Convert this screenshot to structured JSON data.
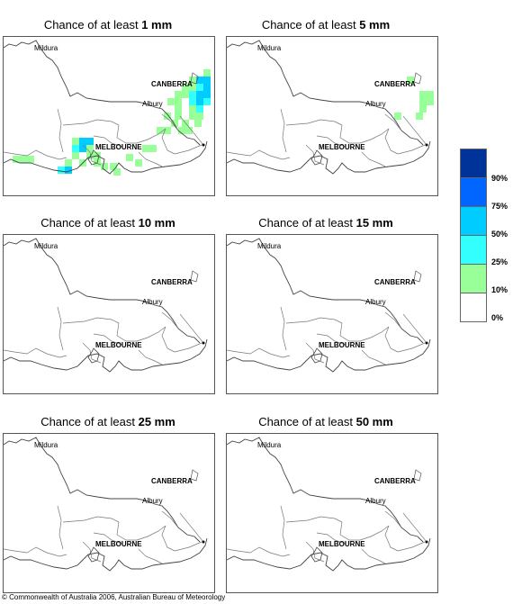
{
  "panels": [
    {
      "prefix": "Chance of at least ",
      "amount": "1 mm",
      "col": 0,
      "row": 0,
      "shaded": true
    },
    {
      "prefix": "Chance of at least ",
      "amount": "5 mm",
      "col": 1,
      "row": 0,
      "shaded": true
    },
    {
      "prefix": "Chance of at least ",
      "amount": "10 mm",
      "col": 0,
      "row": 1,
      "shaded": false
    },
    {
      "prefix": "Chance of at least ",
      "amount": "15 mm",
      "col": 1,
      "row": 1,
      "shaded": false
    },
    {
      "prefix": "Chance of at least ",
      "amount": "25 mm",
      "col": 0,
      "row": 2,
      "shaded": false
    },
    {
      "prefix": "Chance of at least ",
      "amount": "50 mm",
      "col": 1,
      "row": 2,
      "shaded": false
    }
  ],
  "map_labels": {
    "mildura": "Mildura",
    "canberra": "CANBERRA",
    "albury": "Albury",
    "melbourne": "MELBOURNE"
  },
  "legend": {
    "colors": [
      "#003399",
      "#0066ff",
      "#00ccff",
      "#33ffff",
      "#99ff99",
      "#ffffff"
    ],
    "labels": [
      "90%",
      "75%",
      "50%",
      "25%",
      "10%",
      "0%"
    ]
  },
  "footer": "© Commonwealth of Australia 2006, Australian Bureau of Meteorology"
}
